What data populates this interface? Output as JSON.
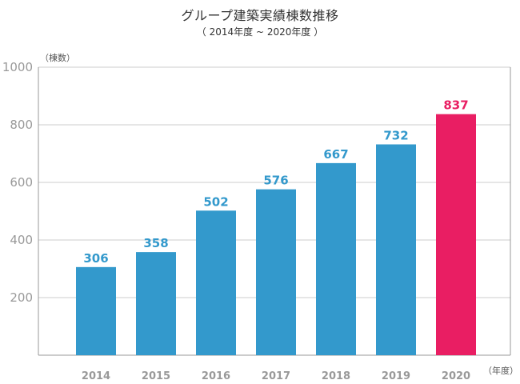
{
  "chart_data": {
    "type": "bar",
    "title": "グループ建築実績棟数推移",
    "subtitle": "（ 2014年度 ~ 2020年度 ）",
    "ylabel": "（棟数）",
    "xlabel": "（年度）",
    "categories": [
      "2014",
      "2015",
      "2016",
      "2017",
      "2018",
      "2019",
      "2020"
    ],
    "values": [
      306,
      358,
      502,
      576,
      667,
      732,
      837
    ],
    "ylim": [
      0,
      1000
    ],
    "yticks": [
      200,
      400,
      600,
      800,
      1000
    ],
    "grid": true,
    "legend": "none",
    "colors": {
      "default_bar": "#3399cc",
      "highlight_bar": "#e91e63",
      "highlight_index": 6,
      "grid": "#cccccc",
      "axis": "#999999"
    }
  }
}
